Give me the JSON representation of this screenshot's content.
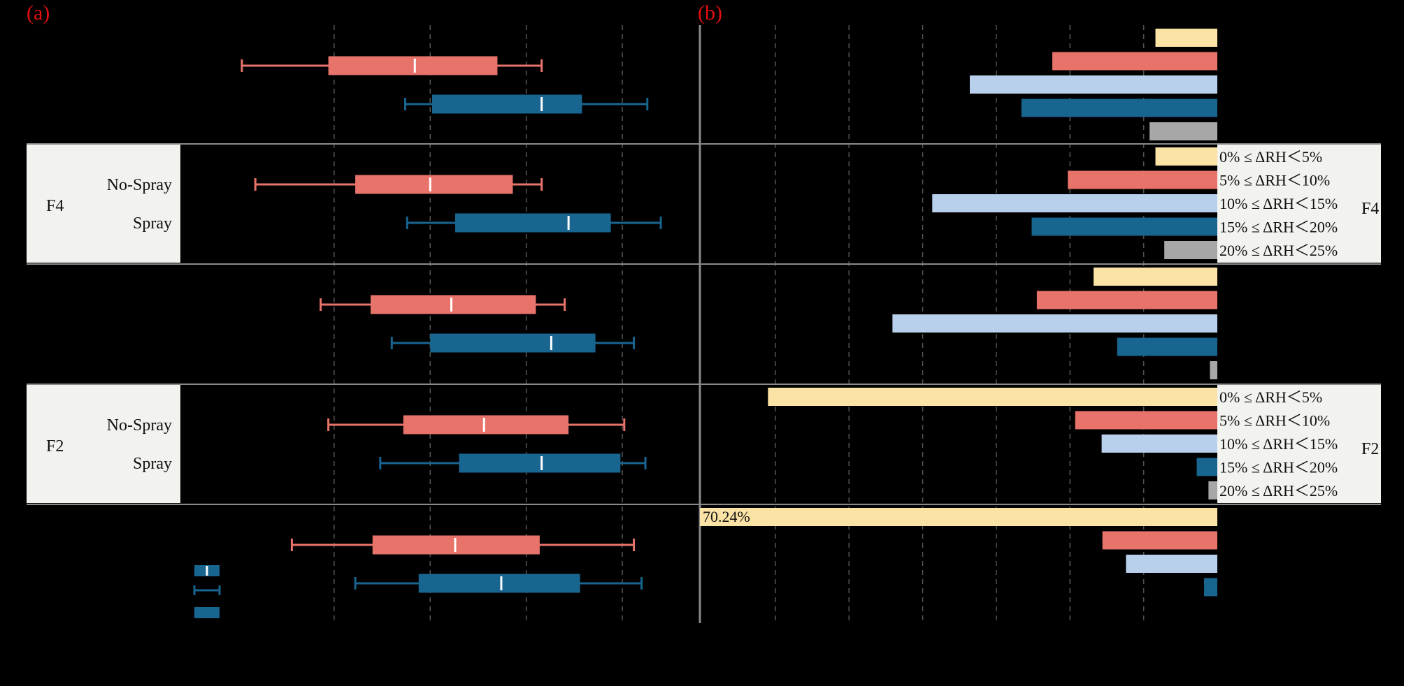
{
  "chart_data": [
    {
      "panel_label": "(a)",
      "type": "box",
      "orientation": "horizontal",
      "groups": [
        {
          "name": "",
          "shaded": false,
          "series": [
            {
              "name": "",
              "whisker_min": -4.8,
              "q1": -0.3,
              "mean": 4.2,
              "q3": 8.5,
              "whisker_max": 10.8
            },
            {
              "name": "",
              "whisker_min": 3.7,
              "q1": 5.1,
              "mean": 10.8,
              "q3": 12.9,
              "whisker_max": 16.3
            }
          ]
        },
        {
          "name": "F4",
          "shaded": true,
          "series": [
            {
              "name": "No-Spray",
              "whisker_min": -4.1,
              "q1": 1.1,
              "mean": 5.0,
              "q3": 9.3,
              "whisker_max": 10.8
            },
            {
              "name": "Spray",
              "whisker_min": 3.8,
              "q1": 6.3,
              "mean": 12.2,
              "q3": 14.4,
              "whisker_max": 17.0
            }
          ]
        },
        {
          "name": "",
          "shaded": false,
          "series": [
            {
              "name": "",
              "whisker_min": -0.7,
              "q1": 1.9,
              "mean": 6.1,
              "q3": 10.5,
              "whisker_max": 12.0
            },
            {
              "name": "",
              "whisker_min": 3.0,
              "q1": 5.0,
              "mean": 11.3,
              "q3": 13.6,
              "whisker_max": 15.6
            }
          ]
        },
        {
          "name": "F2",
          "shaded": true,
          "series": [
            {
              "name": "No-Spray",
              "whisker_min": -0.3,
              "q1": 3.6,
              "mean": 7.8,
              "q3": 12.2,
              "whisker_max": 15.1
            },
            {
              "name": "Spray",
              "whisker_min": 2.4,
              "q1": 6.5,
              "mean": 10.8,
              "q3": 14.9,
              "whisker_max": 16.2
            }
          ]
        },
        {
          "name": "",
          "shaded": false,
          "series": [
            {
              "name": "",
              "whisker_min": -2.2,
              "q1": 2.0,
              "mean": 6.3,
              "q3": 10.7,
              "whisker_max": 15.6
            },
            {
              "name": "",
              "whisker_min": 1.1,
              "q1": 4.4,
              "mean": 8.7,
              "q3": 12.8,
              "whisker_max": 16.0
            }
          ]
        }
      ],
      "x_ticks": [],
      "legend": []
    },
    {
      "panel_label": "(b)",
      "type": "bar",
      "orientation": "horizontal",
      "direction": "right-to-left",
      "xlim": [
        0,
        70.24
      ],
      "categories": [
        "0% ≤ ΔRH＜5%",
        "5% ≤ ΔRH＜10%",
        "10% ≤ ΔRH＜15%",
        "15% ≤ ΔRH＜20%",
        "20% ≤ ΔRH＜25%"
      ],
      "colors": [
        "#fbe3a5",
        "#e8736b",
        "#b8d0ec",
        "#18658f",
        "#a7a7a7"
      ],
      "groups": [
        {
          "name": "",
          "shaded": false,
          "values": [
            8.4,
            22.4,
            33.6,
            26.6,
            9.2
          ],
          "labels": [
            "",
            "",
            "",
            "",
            ""
          ]
        },
        {
          "name": "F4",
          "shaded": true,
          "values": [
            8.4,
            20.3,
            38.7,
            25.2,
            7.2
          ],
          "labels": [
            "",
            "",
            "",
            "",
            ""
          ]
        },
        {
          "name": "",
          "shaded": false,
          "values": [
            16.8,
            24.5,
            44.1,
            13.6,
            1.0
          ],
          "labels": [
            "",
            "",
            "",
            "",
            ""
          ]
        },
        {
          "name": "F2",
          "shaded": true,
          "values": [
            61.0,
            19.3,
            15.7,
            2.8,
            1.2
          ],
          "labels": [
            "",
            "",
            "",
            "",
            ""
          ]
        },
        {
          "name": "",
          "shaded": false,
          "values": [
            70.24,
            15.6,
            12.4,
            1.8,
            0
          ],
          "labels": [
            "70.24%",
            "",
            "",
            "",
            ""
          ]
        }
      ],
      "x_ticks": []
    }
  ]
}
